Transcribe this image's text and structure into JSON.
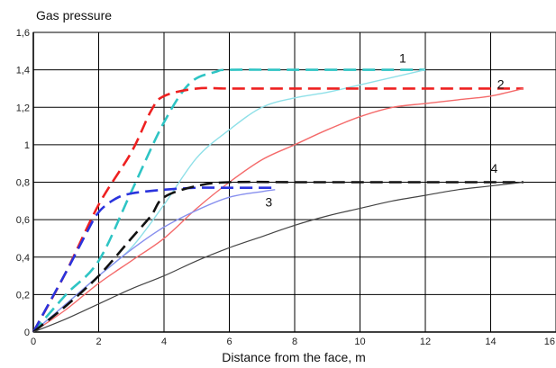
{
  "chart_data": {
    "type": "line",
    "ylabel": "Gas pressure",
    "xlabel": "Distance from the face, m",
    "xlim": [
      0,
      16
    ],
    "ylim": [
      0,
      1.6
    ],
    "x_ticks": [
      "0",
      "2",
      "4",
      "6",
      "8",
      "10",
      "12",
      "14",
      "16"
    ],
    "y_ticks": [
      "0",
      "0,2",
      "0,4",
      "0,6",
      "0,8",
      "1",
      "1,2",
      "1,4",
      "1,6"
    ],
    "grid": true,
    "curve_labels": [
      {
        "text": "1",
        "x": 11.2,
        "y": 1.44
      },
      {
        "text": "2",
        "x": 14.2,
        "y": 1.3
      },
      {
        "text": "3",
        "x": 7.1,
        "y": 0.67
      },
      {
        "text": "4",
        "x": 14.0,
        "y": 0.85
      }
    ],
    "series": [
      {
        "color": "#2ec4c4",
        "dash": true,
        "width": 2.6,
        "points": [
          [
            0,
            0
          ],
          [
            1,
            0.2
          ],
          [
            2,
            0.38
          ],
          [
            3,
            0.75
          ],
          [
            4,
            1.12
          ],
          [
            4.8,
            1.33
          ],
          [
            5.6,
            1.39
          ],
          [
            6,
            1.4
          ],
          [
            8,
            1.4
          ],
          [
            10,
            1.4
          ],
          [
            11.5,
            1.4
          ],
          [
            12,
            1.4
          ]
        ]
      },
      {
        "color": "#8fe0e8",
        "dash": false,
        "width": 1.4,
        "points": [
          [
            0,
            0
          ],
          [
            1,
            0.15
          ],
          [
            2,
            0.3
          ],
          [
            3,
            0.45
          ],
          [
            4,
            0.68
          ],
          [
            5,
            0.93
          ],
          [
            6,
            1.08
          ],
          [
            7,
            1.2
          ],
          [
            8,
            1.25
          ],
          [
            9,
            1.28
          ],
          [
            10,
            1.32
          ],
          [
            11,
            1.36
          ],
          [
            12,
            1.4
          ]
        ]
      },
      {
        "color": "#ee2020",
        "dash": true,
        "width": 2.6,
        "points": [
          [
            0,
            0
          ],
          [
            1,
            0.32
          ],
          [
            2,
            0.68
          ],
          [
            3,
            0.96
          ],
          [
            3.6,
            1.18
          ],
          [
            4,
            1.26
          ],
          [
            5,
            1.3
          ],
          [
            6,
            1.3
          ],
          [
            8,
            1.3
          ],
          [
            10,
            1.3
          ],
          [
            12,
            1.3
          ],
          [
            14,
            1.3
          ],
          [
            15,
            1.3
          ]
        ]
      },
      {
        "color": "#f46a6a",
        "dash": false,
        "width": 1.4,
        "points": [
          [
            0,
            0
          ],
          [
            1,
            0.12
          ],
          [
            2,
            0.26
          ],
          [
            3,
            0.38
          ],
          [
            4,
            0.5
          ],
          [
            5,
            0.66
          ],
          [
            6,
            0.8
          ],
          [
            7,
            0.92
          ],
          [
            8,
            1.0
          ],
          [
            9,
            1.08
          ],
          [
            10,
            1.15
          ],
          [
            11,
            1.2
          ],
          [
            12,
            1.22
          ],
          [
            13,
            1.24
          ],
          [
            14,
            1.26
          ],
          [
            15,
            1.3
          ]
        ]
      },
      {
        "color": "#2a33dd",
        "dash": true,
        "width": 2.6,
        "points": [
          [
            0,
            0
          ],
          [
            1,
            0.32
          ],
          [
            1.6,
            0.52
          ],
          [
            2,
            0.64
          ],
          [
            2.5,
            0.71
          ],
          [
            3,
            0.74
          ],
          [
            4,
            0.76
          ],
          [
            5,
            0.77
          ],
          [
            6,
            0.77
          ],
          [
            7,
            0.77
          ],
          [
            7.4,
            0.77
          ]
        ]
      },
      {
        "color": "#8890ee",
        "dash": false,
        "width": 1.4,
        "points": [
          [
            0,
            0
          ],
          [
            1,
            0.15
          ],
          [
            2,
            0.3
          ],
          [
            3,
            0.44
          ],
          [
            4,
            0.56
          ],
          [
            5,
            0.65
          ],
          [
            6,
            0.72
          ],
          [
            7,
            0.75
          ],
          [
            7.4,
            0.76
          ]
        ]
      },
      {
        "color": "#111111",
        "dash": true,
        "width": 2.6,
        "points": [
          [
            0,
            0
          ],
          [
            1,
            0.14
          ],
          [
            2,
            0.3
          ],
          [
            3,
            0.5
          ],
          [
            3.6,
            0.62
          ],
          [
            4,
            0.72
          ],
          [
            5,
            0.78
          ],
          [
            6,
            0.8
          ],
          [
            8,
            0.8
          ],
          [
            10,
            0.8
          ],
          [
            12,
            0.8
          ],
          [
            14,
            0.8
          ],
          [
            15,
            0.8
          ]
        ]
      },
      {
        "color": "#444444",
        "dash": false,
        "width": 1.2,
        "points": [
          [
            0,
            0
          ],
          [
            1,
            0.07
          ],
          [
            2,
            0.15
          ],
          [
            3,
            0.23
          ],
          [
            4,
            0.3
          ],
          [
            5,
            0.38
          ],
          [
            6,
            0.45
          ],
          [
            7,
            0.51
          ],
          [
            8,
            0.57
          ],
          [
            9,
            0.62
          ],
          [
            10,
            0.66
          ],
          [
            11,
            0.7
          ],
          [
            12,
            0.73
          ],
          [
            13,
            0.76
          ],
          [
            14,
            0.78
          ],
          [
            15,
            0.8
          ]
        ]
      }
    ]
  }
}
